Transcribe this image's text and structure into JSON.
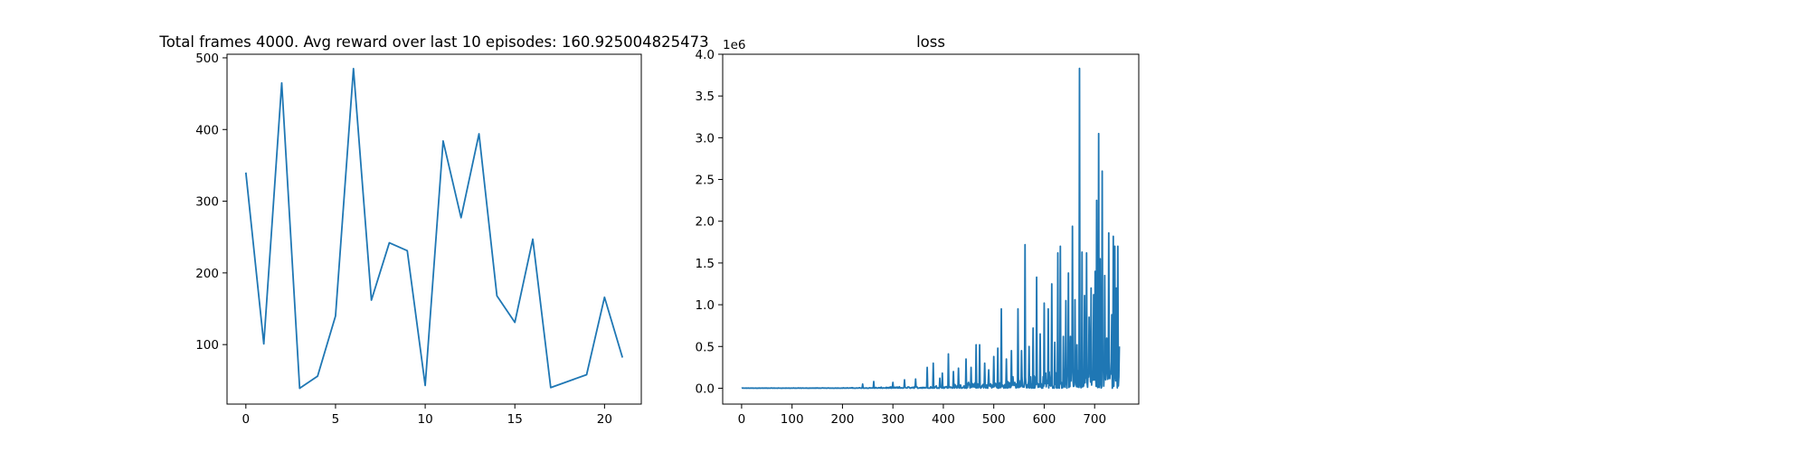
{
  "chart_data": [
    {
      "type": "line",
      "title": "Total frames 4000. Avg reward over last 10 episodes: 160.925004825473",
      "xlabel": "",
      "ylabel": "",
      "xlim": [
        -1.05,
        22.05
      ],
      "ylim": [
        17,
        505
      ],
      "xticks": [
        0,
        5,
        10,
        15,
        20
      ],
      "yticks": [
        100,
        200,
        300,
        400,
        500
      ],
      "xtick_labels": [
        "0",
        "5",
        "10",
        "15",
        "20"
      ],
      "ytick_labels": [
        "100",
        "200",
        "300",
        "400",
        "500"
      ],
      "grid": false,
      "color": "#1f77b4",
      "series": [
        {
          "x": [
            0,
            1,
            2,
            3,
            4,
            5,
            6,
            7,
            8,
            9,
            10,
            11,
            12,
            13,
            14,
            15,
            16,
            17,
            18,
            19,
            20,
            21
          ],
          "values": [
            340,
            101,
            465,
            39,
            56,
            140,
            485,
            162,
            242,
            231,
            43,
            384,
            277,
            394,
            168,
            131,
            247,
            40,
            49,
            58,
            166,
            82
          ]
        }
      ]
    },
    {
      "type": "line",
      "title": "loss",
      "xlabel": "",
      "ylabel": "",
      "offset_text": "1e6",
      "xlim": [
        -37.5,
        787.5
      ],
      "ylim": [
        -0.19,
        4.0
      ],
      "xticks": [
        0,
        100,
        200,
        300,
        400,
        500,
        600,
        700
      ],
      "yticks": [
        0.0,
        0.5,
        1.0,
        1.5,
        2.0,
        2.5,
        3.0,
        3.5,
        4.0
      ],
      "xtick_labels": [
        "0",
        "100",
        "200",
        "300",
        "400",
        "500",
        "600",
        "700"
      ],
      "ytick_labels": [
        "0.0",
        "0.5",
        "1.0",
        "1.5",
        "2.0",
        "2.5",
        "3.0",
        "3.5",
        "4.0"
      ],
      "grid": false,
      "color": "#1f77b4",
      "series": [
        {
          "x_count": 750,
          "spikes": [
            [
              240,
              0.05
            ],
            [
              262,
              0.08
            ],
            [
              300,
              0.07
            ],
            [
              323,
              0.1
            ],
            [
              345,
              0.11
            ],
            [
              368,
              0.25
            ],
            [
              380,
              0.3
            ],
            [
              393,
              0.12
            ],
            [
              398,
              0.18
            ],
            [
              410,
              0.41
            ],
            [
              420,
              0.2
            ],
            [
              430,
              0.24
            ],
            [
              445,
              0.35
            ],
            [
              455,
              0.25
            ],
            [
              465,
              0.52
            ],
            [
              472,
              0.52
            ],
            [
              482,
              0.3
            ],
            [
              490,
              0.22
            ],
            [
              500,
              0.38
            ],
            [
              508,
              0.48
            ],
            [
              515,
              0.95
            ],
            [
              525,
              0.35
            ],
            [
              535,
              0.45
            ],
            [
              548,
              0.95
            ],
            [
              555,
              0.45
            ],
            [
              562,
              1.72
            ],
            [
              570,
              0.5
            ],
            [
              578,
              0.72
            ],
            [
              585,
              1.33
            ],
            [
              592,
              0.65
            ],
            [
              600,
              1.02
            ],
            [
              608,
              0.95
            ],
            [
              615,
              1.25
            ],
            [
              621,
              0.55
            ],
            [
              627,
              1.62
            ],
            [
              632,
              1.7
            ],
            [
              638,
              0.62
            ],
            [
              643,
              1.05
            ],
            [
              648,
              1.38
            ],
            [
              652,
              0.62
            ],
            [
              656,
              1.94
            ],
            [
              661,
              1.06
            ],
            [
              665,
              0.52
            ],
            [
              670,
              3.83
            ],
            [
              675,
              1.63
            ],
            [
              680,
              1.11
            ],
            [
              684,
              1.62
            ],
            [
              689,
              0.85
            ],
            [
              693,
              1.2
            ],
            [
              698,
              1.12
            ],
            [
              701,
              1.4
            ],
            [
              704,
              2.25
            ],
            [
              708,
              3.05
            ],
            [
              711,
              1.55
            ],
            [
              715,
              2.6
            ],
            [
              720,
              1.35
            ],
            [
              724,
              0.6
            ],
            [
              728,
              1.86
            ],
            [
              731,
              0.2
            ],
            [
              734,
              0.88
            ],
            [
              737,
              1.82
            ],
            [
              740,
              1.7
            ],
            [
              743,
              1.2
            ],
            [
              746,
              1.7
            ],
            [
              749,
              0.5
            ]
          ]
        }
      ]
    }
  ]
}
